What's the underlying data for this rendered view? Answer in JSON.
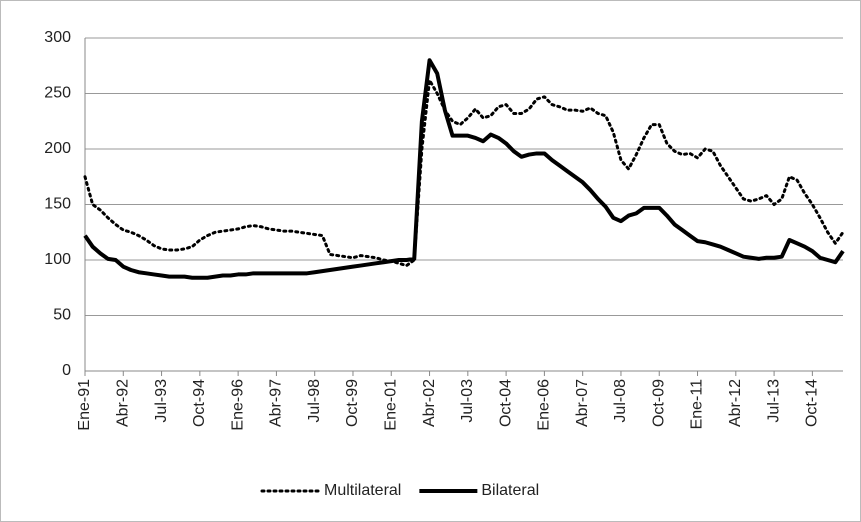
{
  "chart_data": {
    "type": "line",
    "categories": [
      "Ene-91",
      null,
      null,
      null,
      null,
      "Abr-92",
      null,
      null,
      null,
      null,
      "Jul-93",
      null,
      null,
      null,
      null,
      "Oct-94",
      null,
      null,
      null,
      null,
      "Ene-96",
      null,
      null,
      null,
      null,
      "Abr-97",
      null,
      null,
      null,
      null,
      "Jul-98",
      null,
      null,
      null,
      null,
      "Oct-99",
      null,
      null,
      null,
      null,
      "Ene-01",
      null,
      null,
      null,
      null,
      "Abr-02",
      null,
      null,
      null,
      null,
      "Jul-03",
      null,
      null,
      null,
      null,
      "Oct-04",
      null,
      null,
      null,
      null,
      "Ene-06",
      null,
      null,
      null,
      null,
      "Abr-07",
      null,
      null,
      null,
      null,
      "Jul-08",
      null,
      null,
      null,
      null,
      "Oct-09",
      null,
      null,
      null,
      null,
      "Ene-11",
      null,
      null,
      null,
      null,
      "Abr-12",
      null,
      null,
      null,
      null,
      "Jul-13",
      null,
      null,
      null,
      null,
      "Oct-14",
      null,
      null,
      null,
      null
    ],
    "series": [
      {
        "name": "Multilateral",
        "color": "#000000",
        "style": "dotted",
        "values": [
          175,
          150,
          145,
          138,
          132,
          127,
          125,
          122,
          118,
          113,
          110,
          109,
          109,
          110,
          112,
          118,
          122,
          125,
          126,
          127,
          128,
          130,
          131,
          130,
          128,
          127,
          126,
          126,
          125,
          124,
          123,
          122,
          105,
          104,
          103,
          102,
          104,
          103,
          102,
          100,
          99,
          97,
          95,
          100,
          200,
          262,
          250,
          235,
          225,
          222,
          228,
          236,
          228,
          230,
          238,
          240,
          232,
          232,
          236,
          245,
          247,
          240,
          238,
          235,
          235,
          234,
          237,
          232,
          230,
          215,
          190,
          182,
          195,
          210,
          222,
          222,
          205,
          198,
          195,
          196,
          192,
          200,
          198,
          185,
          175,
          165,
          155,
          153,
          155,
          158,
          150,
          155,
          175,
          172,
          160,
          150,
          138,
          125,
          115,
          125
        ]
      },
      {
        "name": "Bilateral",
        "color": "#000000",
        "style": "solid",
        "values": [
          122,
          112,
          106,
          101,
          100,
          94,
          91,
          89,
          88,
          87,
          86,
          85,
          85,
          85,
          84,
          84,
          84,
          85,
          86,
          86,
          87,
          87,
          88,
          88,
          88,
          88,
          88,
          88,
          88,
          88,
          89,
          90,
          91,
          92,
          93,
          94,
          95,
          96,
          97,
          98,
          99,
          100,
          100,
          101,
          225,
          280,
          268,
          235,
          212,
          212,
          212,
          210,
          207,
          213,
          210,
          205,
          198,
          193,
          195,
          196,
          196,
          190,
          185,
          180,
          175,
          170,
          163,
          155,
          148,
          138,
          135,
          140,
          142,
          147,
          147,
          147,
          140,
          132,
          127,
          122,
          117,
          116,
          114,
          112,
          109,
          106,
          103,
          102,
          101,
          102,
          102,
          103,
          118,
          115,
          112,
          108,
          102,
          100,
          98,
          108
        ]
      }
    ],
    "ylim": [
      0,
      300
    ],
    "yticks": [
      0,
      50,
      100,
      150,
      200,
      250,
      300
    ],
    "grid": true,
    "legend": "bottom"
  }
}
